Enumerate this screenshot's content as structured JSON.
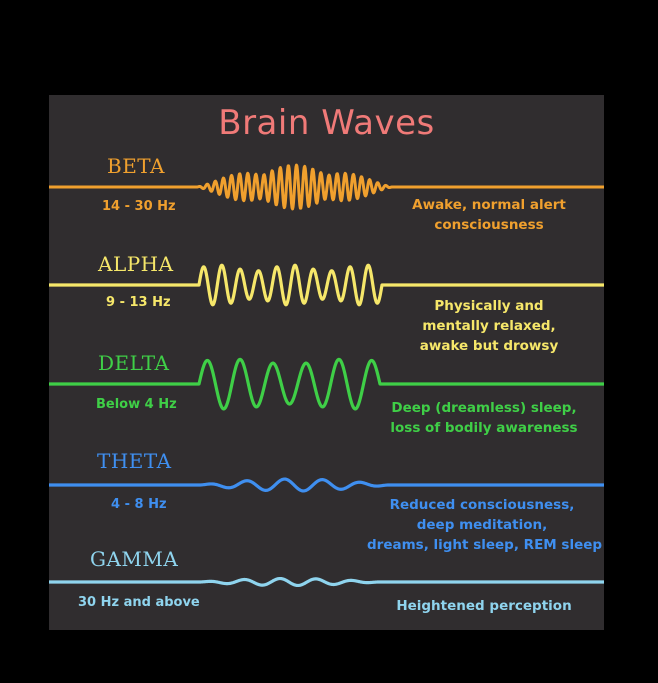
{
  "title": "Brain Waves",
  "colors": {
    "background": "#000000",
    "panel": "#302d2f",
    "title": "#f07a78"
  },
  "waves": [
    {
      "id": "beta",
      "name": "BETA",
      "frequency": "14 - 30 Hz",
      "description": [
        "Awake, normal alert",
        "consciousness"
      ],
      "color": "#f0a02e"
    },
    {
      "id": "alpha",
      "name": "ALPHA",
      "frequency": "9 - 13 Hz",
      "description": [
        "Physically and",
        "mentally relaxed,",
        "awake but drowsy"
      ],
      "color": "#f6e76a"
    },
    {
      "id": "delta",
      "name": "DELTA",
      "frequency": "Below 4 Hz",
      "description": [
        "Deep (dreamless) sleep,",
        "loss of bodily awareness"
      ],
      "color": "#3fcf47"
    },
    {
      "id": "theta",
      "name": "THETA",
      "frequency": "4 - 8 Hz",
      "description": [
        "Reduced consciousness,",
        "deep meditation,",
        "dreams, light sleep, REM sleep"
      ],
      "color": "#3f8ff0"
    },
    {
      "id": "gamma",
      "name": "GAMMA",
      "frequency": "30 Hz and above",
      "description": [
        "Heightened perception"
      ],
      "color": "#8fd4ee"
    }
  ]
}
